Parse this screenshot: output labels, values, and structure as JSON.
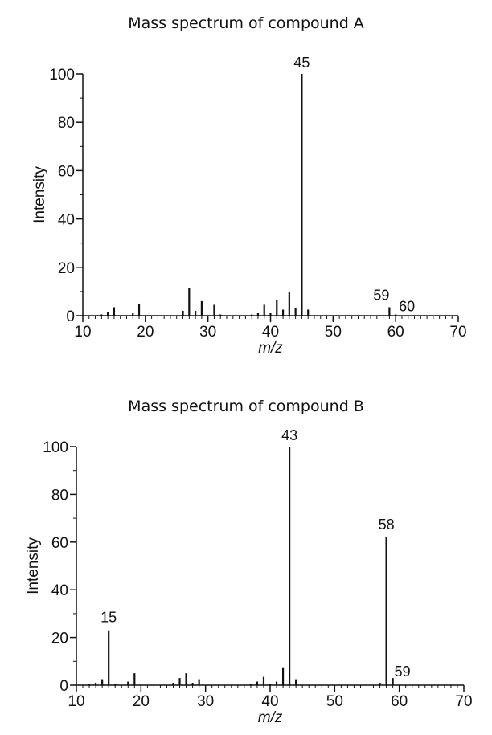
{
  "chart_data": [
    {
      "type": "bar",
      "title": "Mass spectrum of compound A",
      "xlabel": "m/z",
      "ylabel": "Intensity",
      "xlim": [
        10,
        70
      ],
      "ylim": [
        0,
        100
      ],
      "xticks": [
        10,
        20,
        30,
        40,
        50,
        60,
        70
      ],
      "yticks": [
        0,
        20,
        40,
        60,
        80,
        100
      ],
      "grid": false,
      "peaks": [
        {
          "x": 13,
          "y": 0.5
        },
        {
          "x": 14,
          "y": 1.5
        },
        {
          "x": 15,
          "y": 3.5
        },
        {
          "x": 18,
          "y": 1
        },
        {
          "x": 19,
          "y": 5
        },
        {
          "x": 26,
          "y": 2
        },
        {
          "x": 27,
          "y": 11.5
        },
        {
          "x": 28,
          "y": 2
        },
        {
          "x": 29,
          "y": 6
        },
        {
          "x": 31,
          "y": 4.5
        },
        {
          "x": 32,
          "y": 0.5
        },
        {
          "x": 37,
          "y": 0.5
        },
        {
          "x": 38,
          "y": 1
        },
        {
          "x": 39,
          "y": 4.5
        },
        {
          "x": 40,
          "y": 1
        },
        {
          "x": 41,
          "y": 6.5
        },
        {
          "x": 42,
          "y": 2.5
        },
        {
          "x": 43,
          "y": 10
        },
        {
          "x": 44,
          "y": 3
        },
        {
          "x": 45,
          "y": 100
        },
        {
          "x": 46,
          "y": 2.5
        },
        {
          "x": 59,
          "y": 3.5
        },
        {
          "x": 60,
          "y": 0.5
        }
      ],
      "annotations": [
        {
          "x": 45,
          "text": "45"
        },
        {
          "x": 59,
          "text": "59"
        },
        {
          "x": 60,
          "text": "60"
        }
      ]
    },
    {
      "type": "bar",
      "title": "Mass spectrum of compound B",
      "xlabel": "m/z",
      "ylabel": "Intensity",
      "xlim": [
        10,
        70
      ],
      "ylim": [
        0,
        100
      ],
      "xticks": [
        10,
        20,
        30,
        40,
        50,
        60,
        70
      ],
      "yticks": [
        0,
        20,
        40,
        60,
        80,
        100
      ],
      "grid": false,
      "peaks": [
        {
          "x": 12,
          "y": 0.5
        },
        {
          "x": 13,
          "y": 1
        },
        {
          "x": 14,
          "y": 2.5
        },
        {
          "x": 15,
          "y": 23
        },
        {
          "x": 16,
          "y": 0.5
        },
        {
          "x": 18,
          "y": 1.5
        },
        {
          "x": 19,
          "y": 5
        },
        {
          "x": 25,
          "y": 1
        },
        {
          "x": 26,
          "y": 3
        },
        {
          "x": 27,
          "y": 5
        },
        {
          "x": 28,
          "y": 1
        },
        {
          "x": 29,
          "y": 2.5
        },
        {
          "x": 37,
          "y": 0.5
        },
        {
          "x": 38,
          "y": 1.5
        },
        {
          "x": 39,
          "y": 3.5
        },
        {
          "x": 40,
          "y": 0.5
        },
        {
          "x": 41,
          "y": 1.5
        },
        {
          "x": 42,
          "y": 7.5
        },
        {
          "x": 43,
          "y": 100
        },
        {
          "x": 44,
          "y": 2.5
        },
        {
          "x": 57,
          "y": 1
        },
        {
          "x": 58,
          "y": 62
        },
        {
          "x": 59,
          "y": 3
        }
      ],
      "annotations": [
        {
          "x": 15,
          "text": "15"
        },
        {
          "x": 43,
          "text": "43"
        },
        {
          "x": 58,
          "text": "58"
        },
        {
          "x": 59,
          "text": "59"
        }
      ]
    }
  ]
}
